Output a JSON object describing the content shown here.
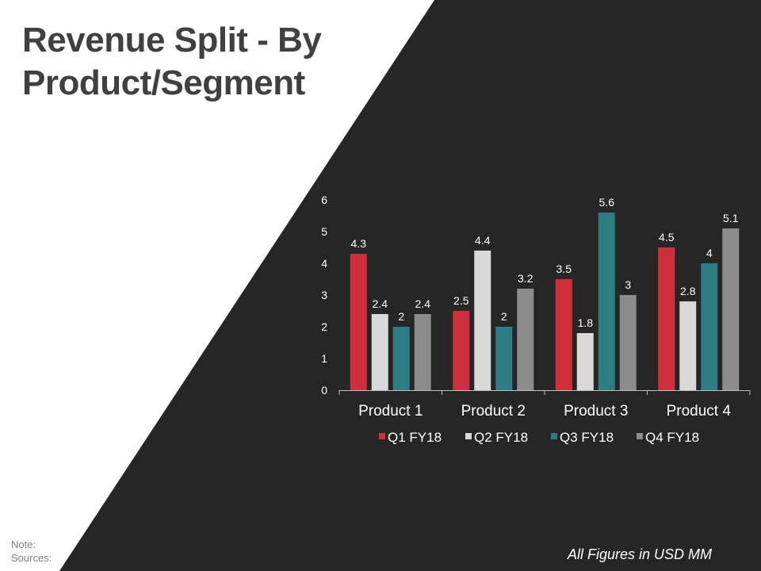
{
  "slide": {
    "title": "Revenue Split - By Product/Segment",
    "note_label": "Note:",
    "sources_label": "Sources:",
    "footnote": "All Figures in USD MM"
  },
  "colors": {
    "background_dark": "#262626",
    "background_light": "#ffffff",
    "title": "#404040",
    "axis_text": "#ffffff"
  },
  "chart_data": {
    "type": "bar",
    "title": "",
    "xlabel": "",
    "ylabel": "",
    "categories": [
      "Product 1",
      "Product 2",
      "Product 3",
      "Product 4"
    ],
    "series": [
      {
        "name": "Q1 FY18",
        "color": "#d0303b",
        "values": [
          4.3,
          2.5,
          3.5,
          4.5
        ]
      },
      {
        "name": "Q2 FY18",
        "color": "#d9d9d9",
        "values": [
          2.4,
          4.4,
          1.8,
          2.8
        ]
      },
      {
        "name": "Q3 FY18",
        "color": "#2e7d82",
        "values": [
          2,
          2,
          5.6,
          4
        ]
      },
      {
        "name": "Q4 FY18",
        "color": "#8c8c8c",
        "values": [
          2.4,
          3.2,
          3,
          5.1
        ]
      }
    ],
    "ylim": [
      0,
      6
    ],
    "yticks": [
      0,
      1,
      2,
      3,
      4,
      5,
      6
    ],
    "grid": false,
    "legend": "bottom",
    "data_labels": true
  }
}
